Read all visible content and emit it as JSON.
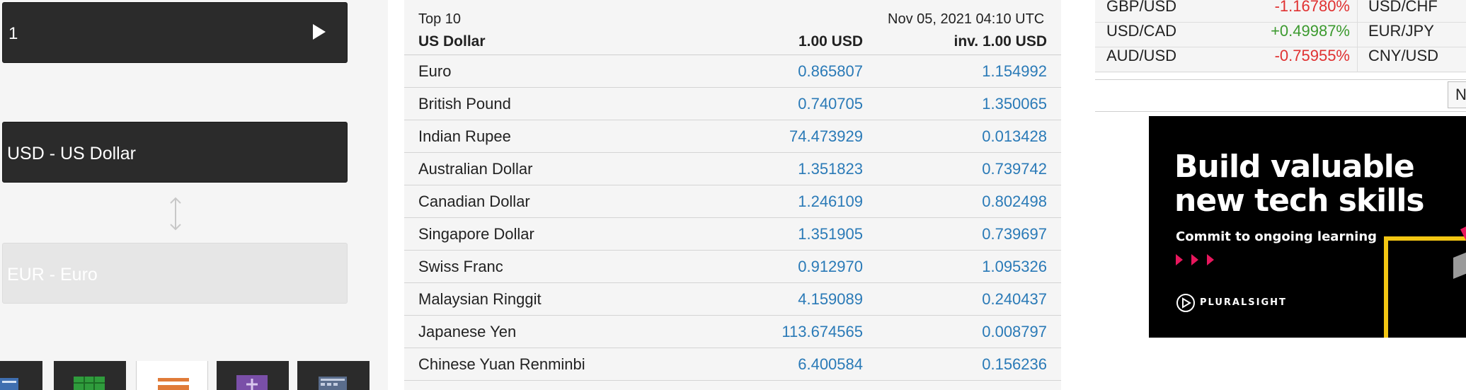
{
  "converter": {
    "amount_value": "1",
    "from_currency": "USD - US Dollar",
    "to_currency": "EUR - Euro"
  },
  "table": {
    "top_label": "Top 10",
    "timestamp": "Nov 05, 2021 04:10 UTC",
    "base_currency": "US Dollar",
    "col_rate_header": "1.00 USD",
    "col_inv_header": "inv. 1.00 USD",
    "rows": [
      {
        "name": "Euro",
        "rate": "0.865807",
        "inv": "1.154992"
      },
      {
        "name": "British Pound",
        "rate": "0.740705",
        "inv": "1.350065"
      },
      {
        "name": "Indian Rupee",
        "rate": "74.473929",
        "inv": "0.013428"
      },
      {
        "name": "Australian Dollar",
        "rate": "1.351823",
        "inv": "0.739742"
      },
      {
        "name": "Canadian Dollar",
        "rate": "1.246109",
        "inv": "0.802498"
      },
      {
        "name": "Singapore Dollar",
        "rate": "1.351905",
        "inv": "0.739697"
      },
      {
        "name": "Swiss Franc",
        "rate": "0.912970",
        "inv": "1.095326"
      },
      {
        "name": "Malaysian Ringgit",
        "rate": "4.159089",
        "inv": "0.240437"
      },
      {
        "name": "Japanese Yen",
        "rate": "113.674565",
        "inv": "0.008797"
      },
      {
        "name": "Chinese Yuan Renminbi",
        "rate": "6.400584",
        "inv": "0.156236"
      }
    ]
  },
  "ticker": {
    "rows": [
      {
        "pair": "GBP/USD",
        "change": "-1.16780%",
        "direction": "down",
        "pair2": "USD/CHF"
      },
      {
        "pair": "USD/CAD",
        "change": "+0.49987%",
        "direction": "up",
        "pair2": "EUR/JPY"
      },
      {
        "pair": "AUD/USD",
        "change": "-0.75955%",
        "direction": "down",
        "pair2": "CNY/USD"
      }
    ]
  },
  "search": {
    "value": "",
    "button_label": "N"
  },
  "ad": {
    "headline": "Build valuable new tech skills",
    "subline": "Commit to ongoing learning",
    "brand": "PLURALSIGHT",
    "colors": {
      "background": "#000000",
      "accent_pink": "#e8175d",
      "accent_yellow": "#f3c613"
    }
  },
  "colors": {
    "rate_link": "#2a7ab7",
    "positive": "#3c9a2f",
    "negative": "#e03131",
    "dark_control": "#2b2b2b"
  },
  "icons": {
    "amount_submit": "play-triangle-icon",
    "swap": "swap-vertical-arrows-icon",
    "tabs": [
      "calculator-icon",
      "table-grid-icon",
      "list-icon",
      "plus-icon",
      "calendar-icon"
    ]
  }
}
